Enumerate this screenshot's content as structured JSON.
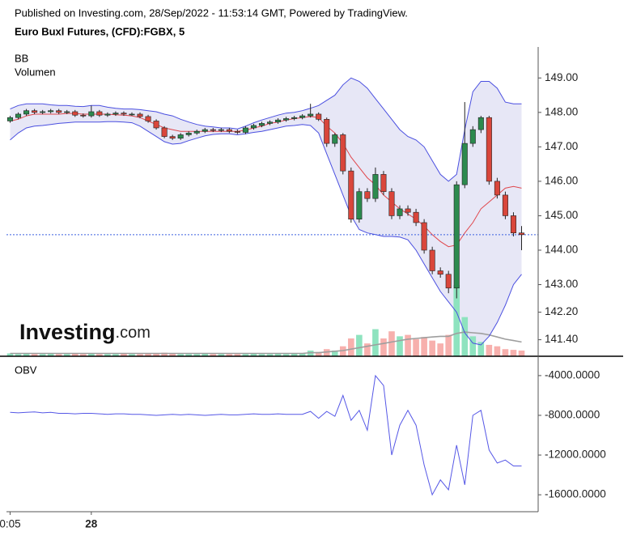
{
  "header": {
    "published": "Published on Investing.com, 28/Sep/2022 - 11:53:14 GMT, Powered by TradingView.",
    "instrument": "Euro Buxl Futures, (CFD):FGBX, 5"
  },
  "logo": {
    "brand": "Investing",
    "suffix": ".com"
  },
  "chart_data": [
    {
      "type": "candlestick",
      "labels": [
        "BB",
        "Volumen"
      ],
      "ylim": [
        140.92,
        149.9
      ],
      "yticks": [
        {
          "value": 149,
          "label": "149.00"
        },
        {
          "value": 148,
          "label": "148.00"
        },
        {
          "value": 147,
          "label": "147.00"
        },
        {
          "value": 146,
          "label": "146.00"
        },
        {
          "value": 145,
          "label": "145.00"
        },
        {
          "value": 144,
          "label": "144.00"
        },
        {
          "value": 143,
          "label": "143.00"
        },
        {
          "value": 142.2,
          "label": "142.20"
        },
        {
          "value": 141.4,
          "label": "141.40"
        }
      ],
      "up_color": "#2c8a4e",
      "down_color": "#d9463b",
      "volume_up_color": "#8ee3bf",
      "volume_down_color": "#f7b0ad",
      "volume_ma_color": "#9e9e9e",
      "band_color": "#4a4fe0",
      "band_fill": "#e3e3f4",
      "middle_color": "#e0474c",
      "last_price_color": "#3b5fe0",
      "open": [
        147.75,
        147.85,
        147.95,
        148.05,
        148.0,
        148.02,
        148.05,
        148.0,
        148.02,
        147.92,
        147.9,
        148.02,
        147.92,
        147.95,
        147.98,
        147.95,
        147.95,
        147.88,
        147.75,
        147.55,
        147.3,
        147.25,
        147.35,
        147.4,
        147.45,
        147.5,
        147.48,
        147.5,
        147.45,
        147.42,
        147.55,
        147.62,
        147.68,
        147.72,
        147.78,
        147.82,
        147.85,
        147.9,
        147.95,
        147.8,
        147.1,
        147.35,
        146.3,
        144.9,
        145.7,
        145.5,
        146.2,
        145.7,
        145.0,
        145.2,
        145.1,
        144.8,
        144.0,
        143.4,
        143.3,
        142.9,
        145.9,
        147.1,
        147.5,
        147.85,
        146.0,
        145.6,
        145.0,
        144.5
      ],
      "high": [
        147.9,
        148.0,
        148.1,
        148.1,
        148.07,
        148.1,
        148.1,
        148.07,
        148.07,
        147.97,
        148.2,
        148.07,
        148.0,
        148.03,
        148.03,
        148.0,
        148.0,
        147.93,
        147.8,
        147.6,
        147.35,
        147.4,
        147.45,
        147.5,
        147.55,
        147.55,
        147.55,
        147.55,
        147.5,
        147.6,
        147.67,
        147.73,
        147.77,
        147.83,
        147.87,
        147.9,
        147.95,
        148.25,
        148.0,
        147.85,
        147.4,
        147.4,
        146.4,
        145.8,
        145.8,
        146.4,
        146.3,
        145.8,
        145.3,
        145.3,
        145.2,
        144.9,
        144.1,
        143.5,
        143.4,
        146.0,
        148.3,
        147.6,
        147.9,
        147.9,
        146.1,
        145.7,
        145.1,
        144.7
      ],
      "low": [
        147.7,
        147.8,
        147.9,
        147.95,
        147.95,
        147.97,
        147.95,
        147.95,
        147.87,
        147.85,
        147.85,
        147.87,
        147.87,
        147.9,
        147.9,
        147.9,
        147.83,
        147.7,
        147.5,
        147.25,
        147.2,
        147.2,
        147.3,
        147.35,
        147.4,
        147.43,
        147.43,
        147.4,
        147.37,
        147.37,
        147.5,
        147.57,
        147.63,
        147.67,
        147.73,
        147.77,
        147.8,
        147.85,
        147.75,
        147.0,
        147.0,
        146.2,
        144.8,
        144.8,
        145.4,
        145.4,
        145.6,
        144.9,
        144.9,
        145.0,
        144.7,
        143.9,
        143.3,
        143.2,
        142.75,
        142.6,
        145.8,
        147.0,
        147.4,
        145.9,
        145.5,
        144.9,
        144.4,
        144.0
      ],
      "close": [
        147.85,
        147.95,
        148.05,
        148.0,
        148.02,
        148.05,
        148.0,
        148.02,
        147.92,
        147.9,
        148.02,
        147.92,
        147.95,
        147.98,
        147.95,
        147.95,
        147.88,
        147.75,
        147.55,
        147.3,
        147.25,
        147.35,
        147.4,
        147.45,
        147.5,
        147.48,
        147.5,
        147.45,
        147.42,
        147.55,
        147.62,
        147.68,
        147.72,
        147.78,
        147.82,
        147.85,
        147.9,
        147.95,
        147.8,
        147.1,
        147.35,
        146.3,
        144.9,
        145.7,
        145.5,
        146.2,
        145.7,
        145.0,
        145.2,
        145.1,
        144.8,
        144.0,
        143.4,
        143.3,
        142.9,
        145.9,
        147.1,
        147.5,
        147.85,
        146.0,
        145.6,
        145.0,
        144.5,
        144.45
      ],
      "bb_upper": [
        148.1,
        148.2,
        148.25,
        148.25,
        148.25,
        148.22,
        148.2,
        148.2,
        148.18,
        148.17,
        148.2,
        148.2,
        148.15,
        148.12,
        148.1,
        148.1,
        148.08,
        148.05,
        148.02,
        147.95,
        147.9,
        147.8,
        147.72,
        147.65,
        147.6,
        147.58,
        147.55,
        147.55,
        147.52,
        147.6,
        147.7,
        147.78,
        147.85,
        147.92,
        147.98,
        148.0,
        148.05,
        148.12,
        148.2,
        148.35,
        148.5,
        148.8,
        149.0,
        148.9,
        148.7,
        148.4,
        148.1,
        147.8,
        147.5,
        147.3,
        147.2,
        147.0,
        146.6,
        146.2,
        146.0,
        146.2,
        147.5,
        148.6,
        148.9,
        148.9,
        148.7,
        148.3,
        148.25,
        148.25
      ],
      "bb_middle": [
        147.75,
        147.8,
        147.9,
        147.95,
        147.95,
        147.95,
        147.95,
        147.97,
        147.97,
        147.95,
        147.95,
        147.95,
        147.95,
        147.93,
        147.92,
        147.9,
        147.85,
        147.75,
        147.65,
        147.55,
        147.5,
        147.45,
        147.45,
        147.45,
        147.45,
        147.45,
        147.45,
        147.45,
        147.45,
        147.48,
        147.55,
        147.6,
        147.68,
        147.72,
        147.78,
        147.82,
        147.85,
        147.88,
        147.85,
        147.6,
        147.4,
        147.1,
        146.7,
        146.4,
        146.1,
        145.9,
        145.6,
        145.4,
        145.2,
        145.05,
        144.9,
        144.7,
        144.45,
        144.25,
        144.1,
        144.15,
        144.5,
        144.8,
        145.2,
        145.4,
        145.6,
        145.8,
        145.85,
        145.8
      ],
      "bb_lower": [
        147.2,
        147.4,
        147.55,
        147.6,
        147.62,
        147.65,
        147.68,
        147.7,
        147.72,
        147.72,
        147.72,
        147.72,
        147.73,
        147.73,
        147.72,
        147.7,
        147.6,
        147.45,
        147.3,
        147.15,
        147.08,
        147.1,
        147.18,
        147.25,
        147.32,
        147.36,
        147.38,
        147.38,
        147.35,
        147.38,
        147.42,
        147.45,
        147.5,
        147.55,
        147.6,
        147.62,
        147.65,
        147.62,
        147.4,
        146.8,
        146.2,
        145.6,
        145.0,
        144.6,
        144.5,
        144.45,
        144.4,
        144.4,
        144.38,
        144.3,
        144.0,
        143.6,
        143.2,
        142.8,
        142.5,
        142.2,
        141.6,
        141.3,
        141.25,
        141.5,
        141.9,
        142.4,
        143.0,
        143.3
      ],
      "volume": [
        4,
        3,
        4,
        3,
        3,
        4,
        3,
        3,
        4,
        3,
        4,
        3,
        3,
        3,
        4,
        3,
        3,
        4,
        4,
        5,
        4,
        3,
        3,
        3,
        4,
        3,
        3,
        3,
        3,
        3,
        4,
        3,
        3,
        4,
        3,
        4,
        4,
        8,
        6,
        10,
        8,
        14,
        25,
        30,
        18,
        38,
        25,
        35,
        28,
        30,
        24,
        27,
        22,
        18,
        30,
        100,
        55,
        28,
        20,
        16,
        14,
        10,
        9,
        8
      ],
      "volume_ma": [
        4,
        4,
        4,
        4,
        4,
        4,
        4,
        4,
        4,
        4,
        4,
        4,
        4,
        4,
        4,
        4,
        4,
        4,
        4,
        4,
        4,
        4,
        4,
        4,
        4,
        4,
        4,
        4,
        4,
        4,
        4,
        4,
        4,
        4,
        4,
        4,
        4,
        5,
        5,
        6,
        7,
        8,
        10,
        12,
        14,
        16,
        18,
        20,
        22,
        24,
        25,
        26,
        27,
        28,
        28,
        32,
        34,
        33,
        32,
        30,
        27,
        24,
        22,
        20
      ]
    },
    {
      "type": "line",
      "label": "OBV",
      "color": "#5557e6",
      "ylim": [
        -17540,
        -2460
      ],
      "yticks": [
        {
          "value": -4000,
          "label": "-4000.0000"
        },
        {
          "value": -8000,
          "label": "-8000.0000"
        },
        {
          "value": -12000,
          "label": "-12000.0000"
        },
        {
          "value": -16000,
          "label": "-16000.0000"
        }
      ],
      "categories": [
        "0:05",
        null,
        null,
        null,
        null,
        null,
        null,
        null,
        null,
        null,
        "28",
        null,
        null,
        null,
        null,
        null,
        null,
        null,
        null,
        null,
        null,
        null,
        null,
        null,
        null,
        null,
        null,
        null,
        null,
        null,
        null,
        null,
        null,
        null,
        null,
        null,
        null,
        null,
        null,
        null,
        null,
        null,
        null,
        null,
        null,
        null,
        null,
        null,
        null,
        null,
        null,
        null,
        null,
        null,
        null,
        null,
        null,
        null,
        null,
        null,
        null,
        null,
        null,
        null
      ],
      "values": [
        -7700,
        -7750,
        -7700,
        -7650,
        -7750,
        -7700,
        -7800,
        -7800,
        -7850,
        -7800,
        -7800,
        -7850,
        -7900,
        -7850,
        -7850,
        -7900,
        -7900,
        -7950,
        -8000,
        -7950,
        -7900,
        -7950,
        -7900,
        -7950,
        -8000,
        -7950,
        -7900,
        -7950,
        -7950,
        -7900,
        -7850,
        -7900,
        -7900,
        -7850,
        -7900,
        -7900,
        -7900,
        -7600,
        -8300,
        -7600,
        -8100,
        -6000,
        -8500,
        -7500,
        -9500,
        -4000,
        -5000,
        -12000,
        -9000,
        -7500,
        -9000,
        -13000,
        -16000,
        -14500,
        -15500,
        -11000,
        -15000,
        -8000,
        -7500,
        -11500,
        -12800,
        -12500,
        -13100,
        -13100
      ]
    }
  ]
}
